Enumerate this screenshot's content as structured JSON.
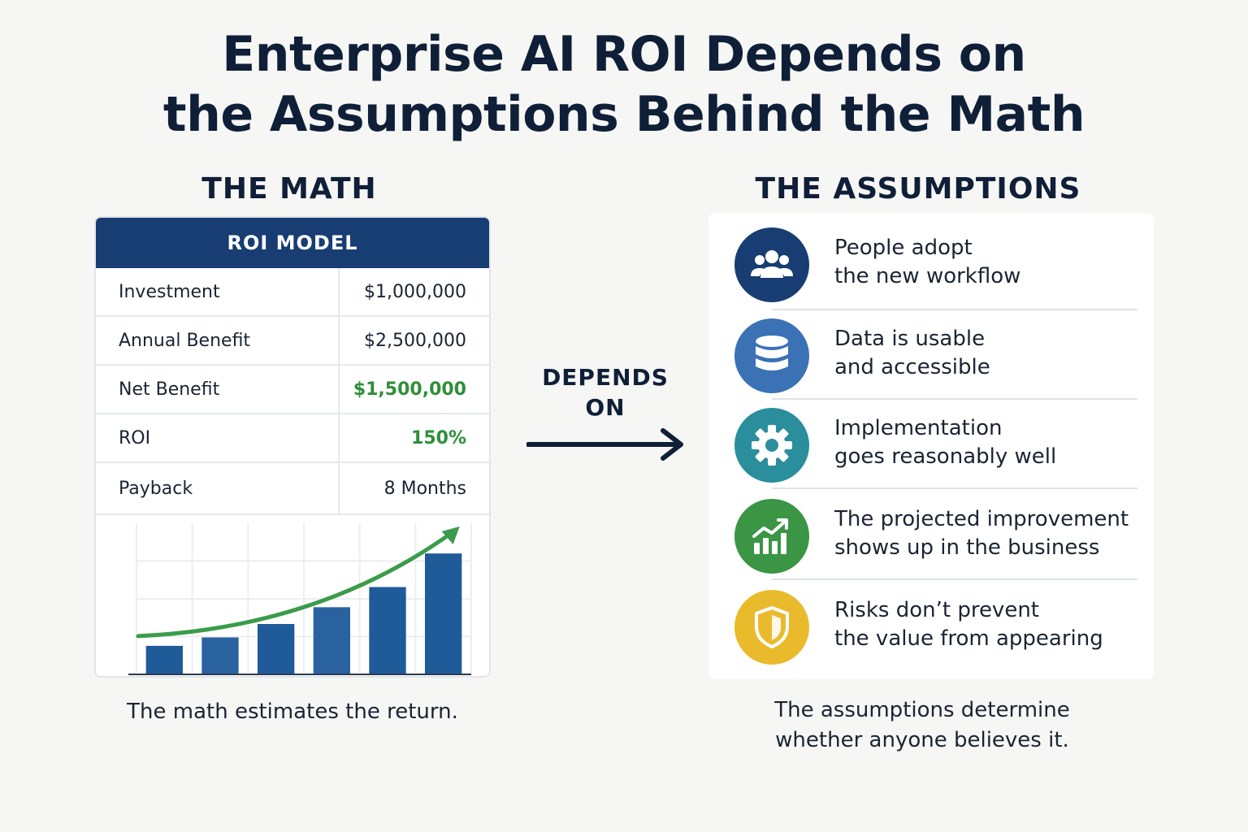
{
  "title": {
    "line1": "Enterprise AI ROI Depends on",
    "line2": "the Assumptions Behind the Math"
  },
  "math": {
    "heading": "THE MATH",
    "table": {
      "header": "ROI MODEL",
      "rows": [
        {
          "label": "Investment",
          "value": "$1,000,000"
        },
        {
          "label": "Annual Benefit",
          "value": "$2,500,000"
        },
        {
          "label": "Net Benefit",
          "value": "$1,500,000"
        },
        {
          "label": "ROI",
          "value": "150%"
        },
        {
          "label": "Payback",
          "value": "8 Months"
        }
      ]
    },
    "caption": "The math estimates the return."
  },
  "connector": {
    "line1": "DEPENDS",
    "line2": "ON"
  },
  "assumptions": {
    "heading": "THE ASSUMPTIONS",
    "items": [
      {
        "icon": "people-icon",
        "color": "#173d72",
        "line1": "People adopt",
        "line2": "the new workflow"
      },
      {
        "icon": "database-icon",
        "color": "#3a72b5",
        "line1": "Data is usable",
        "line2": "and accessible"
      },
      {
        "icon": "gear-icon",
        "color": "#2a8e9c",
        "line1": "Implementation",
        "line2": "goes reasonably well"
      },
      {
        "icon": "growth-chart-icon",
        "color": "#3a9544",
        "line1": "The projected improvement",
        "line2": "shows up in the business"
      },
      {
        "icon": "shield-icon",
        "color": "#e9bb2c",
        "line1": "Risks don’t prevent",
        "line2": "the value from appearing"
      }
    ],
    "caption_line1": "The assumptions determine",
    "caption_line2": "whether anyone believes it."
  },
  "colors": {
    "navy": "#173d72",
    "bar_blue": "#1f5a99",
    "positive_green": "#2f8f3a",
    "trend_green": "#3a9c4a"
  },
  "chart_data": {
    "type": "bar",
    "categories": [
      "1",
      "2",
      "3",
      "4",
      "5",
      "6"
    ],
    "values": [
      17,
      22,
      30,
      40,
      52,
      72
    ],
    "ylim": [
      0,
      90
    ],
    "grid": true,
    "trend_arrow": true
  }
}
